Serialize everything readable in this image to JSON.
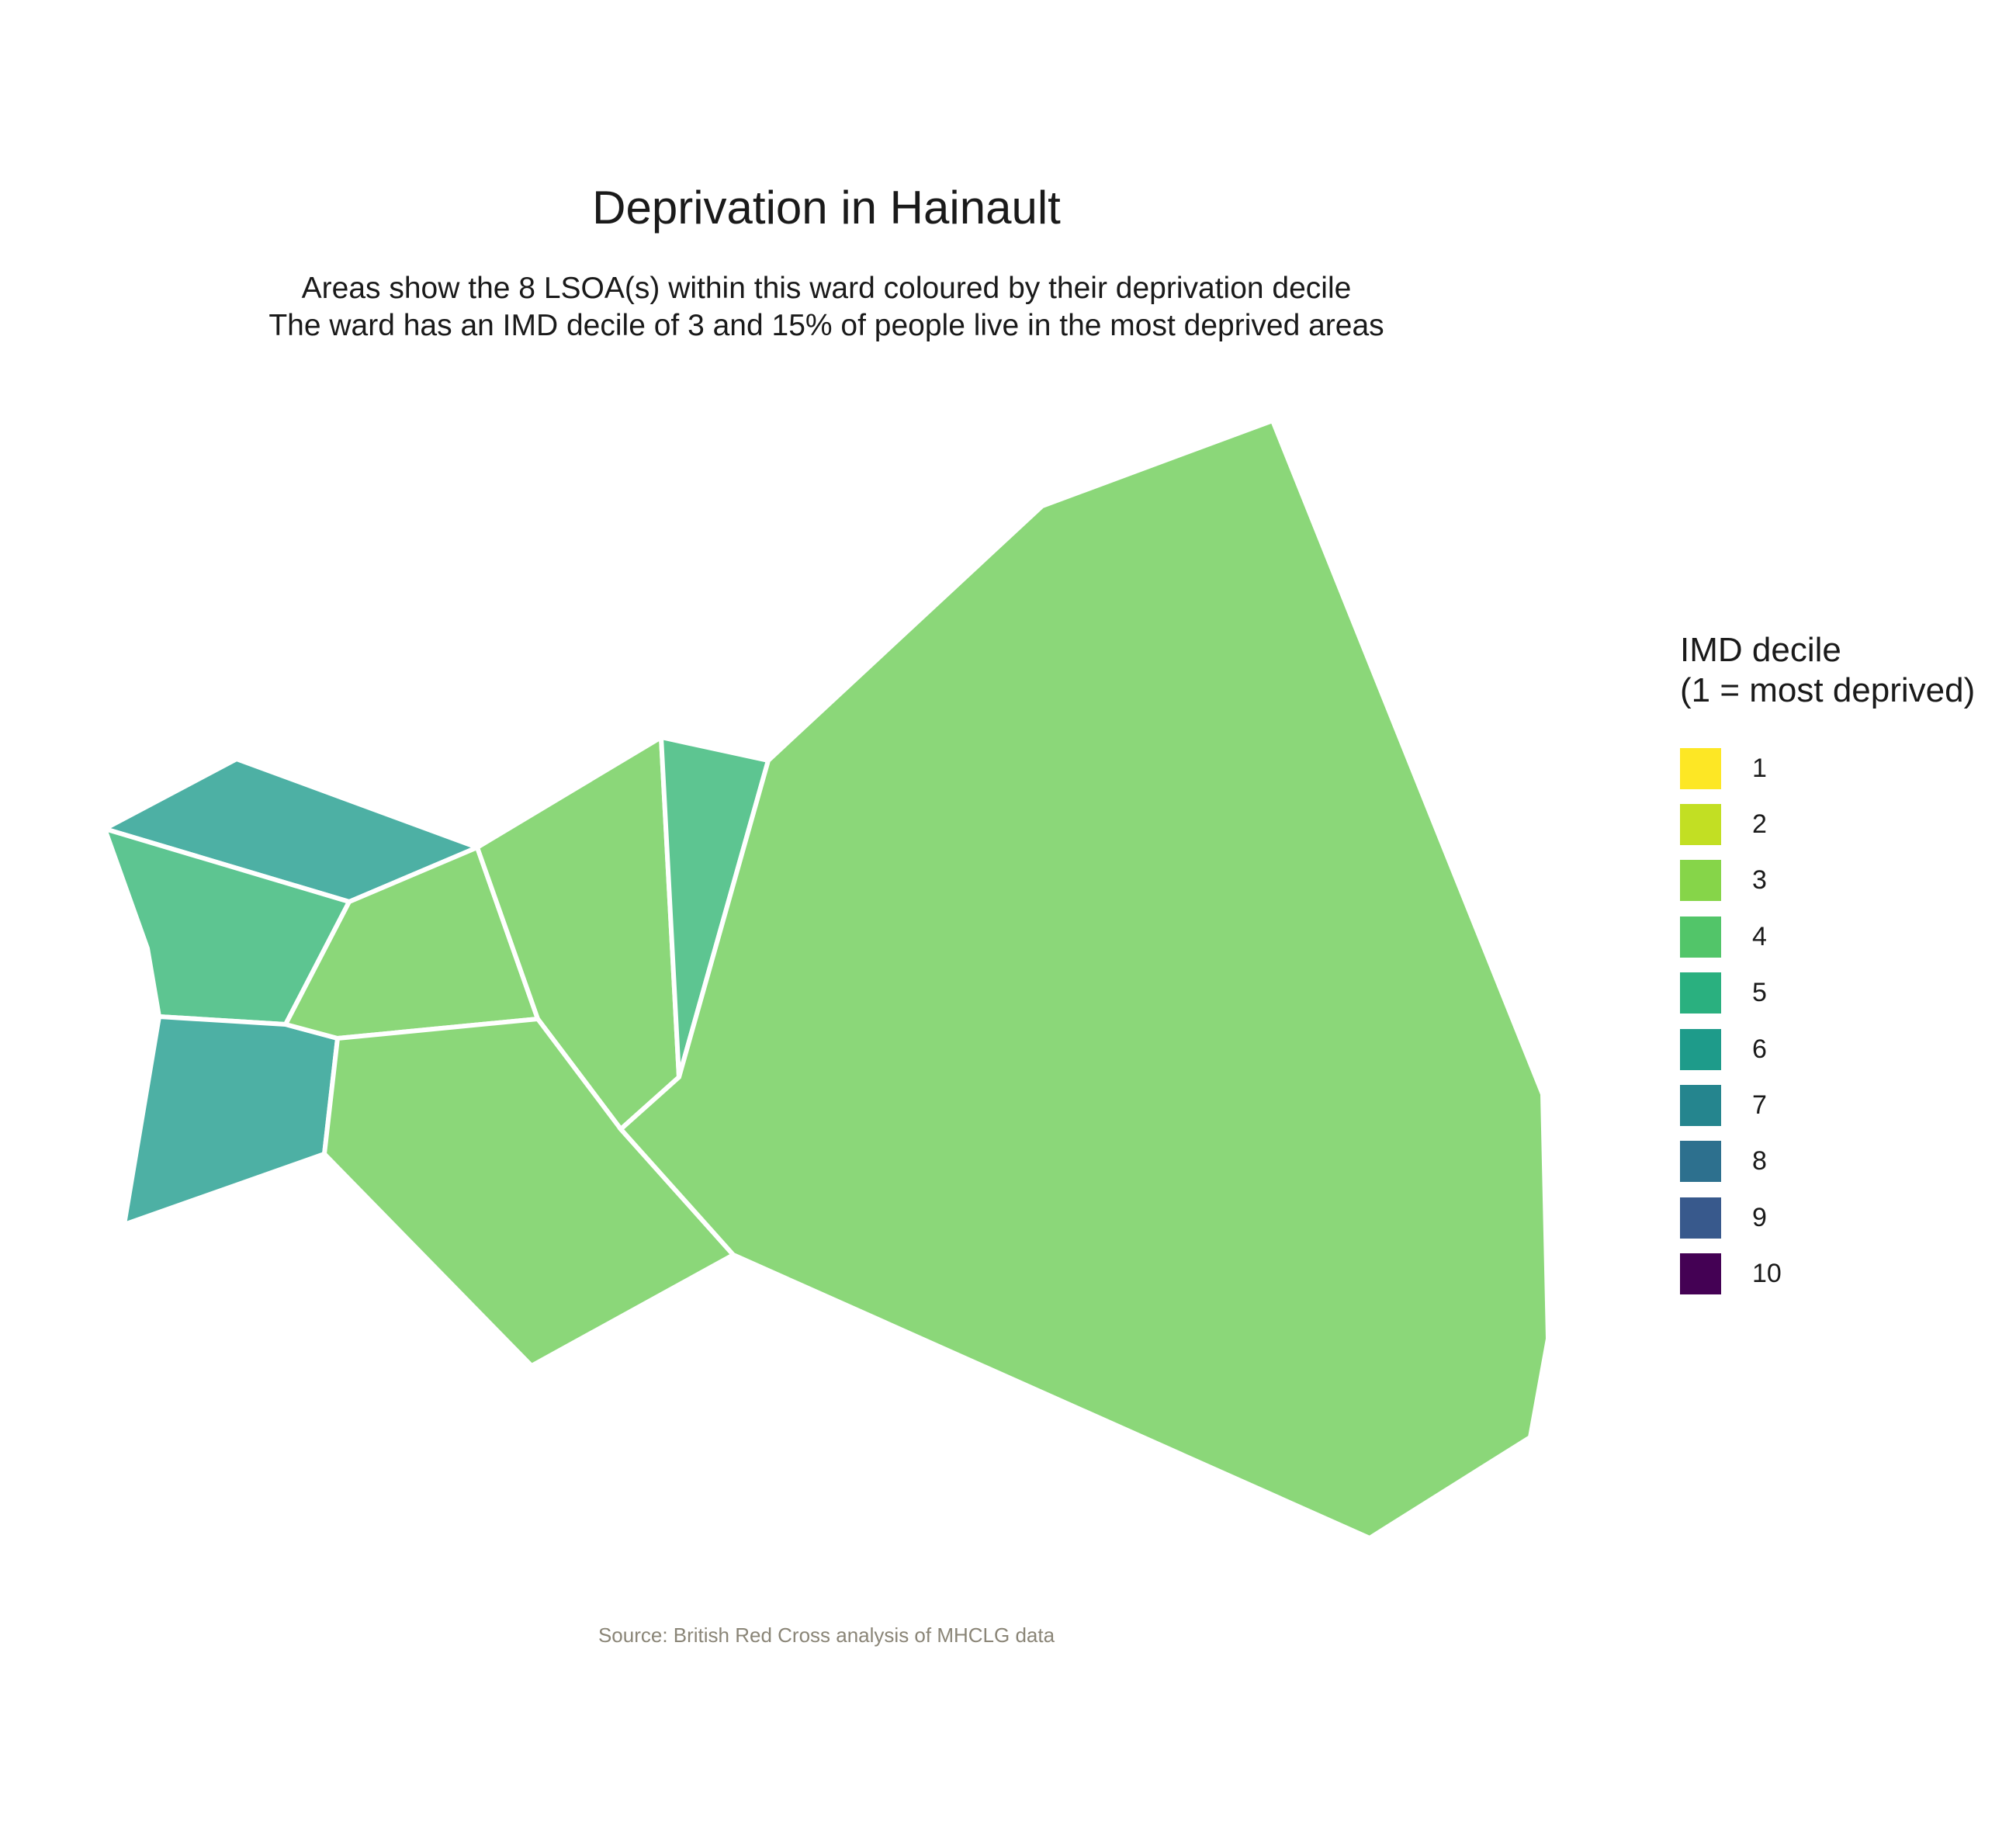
{
  "title": "Deprivation in Hainault",
  "subtitle_line1": "Areas show the 8 LSOA(s) within this ward coloured by their deprivation decile",
  "subtitle_line2": "The ward has an IMD decile of 3 and 15% of people live in the most deprived areas",
  "caption": "Source: British Red Cross analysis of MHCLG data",
  "legend": {
    "title_line1": "IMD decile",
    "title_line2": "(1 = most deprived)",
    "items": [
      {
        "label": "1",
        "color": "#FDE725"
      },
      {
        "label": "2",
        "color": "#C2DF23"
      },
      {
        "label": "3",
        "color": "#86D549"
      },
      {
        "label": "4",
        "color": "#52C569"
      },
      {
        "label": "5",
        "color": "#2AB07F"
      },
      {
        "label": "6",
        "color": "#1E9B8A"
      },
      {
        "label": "7",
        "color": "#25858E"
      },
      {
        "label": "8",
        "color": "#2D708E"
      },
      {
        "label": "9",
        "color": "#38598C"
      },
      {
        "label": "10",
        "color": "#440154"
      }
    ]
  },
  "map_data": {
    "ward": "Hainault",
    "lsoa_count": 8,
    "areas": [
      {
        "id": "lsoa-north-west",
        "decile": 5,
        "color": "#4DB0A4"
      },
      {
        "id": "lsoa-west",
        "decile": 4,
        "color": "#5DC591"
      },
      {
        "id": "lsoa-south-west",
        "decile": 5,
        "color": "#4DB0A4"
      },
      {
        "id": "lsoa-central-west",
        "decile": 3,
        "color": "#8BD779"
      },
      {
        "id": "lsoa-central-north",
        "decile": 3,
        "color": "#8BD779"
      },
      {
        "id": "lsoa-central-strip",
        "decile": 4,
        "color": "#5DC591"
      },
      {
        "id": "lsoa-south-central",
        "decile": 3,
        "color": "#8BD779"
      },
      {
        "id": "lsoa-east",
        "decile": 3,
        "color": "#8BD779"
      }
    ]
  }
}
